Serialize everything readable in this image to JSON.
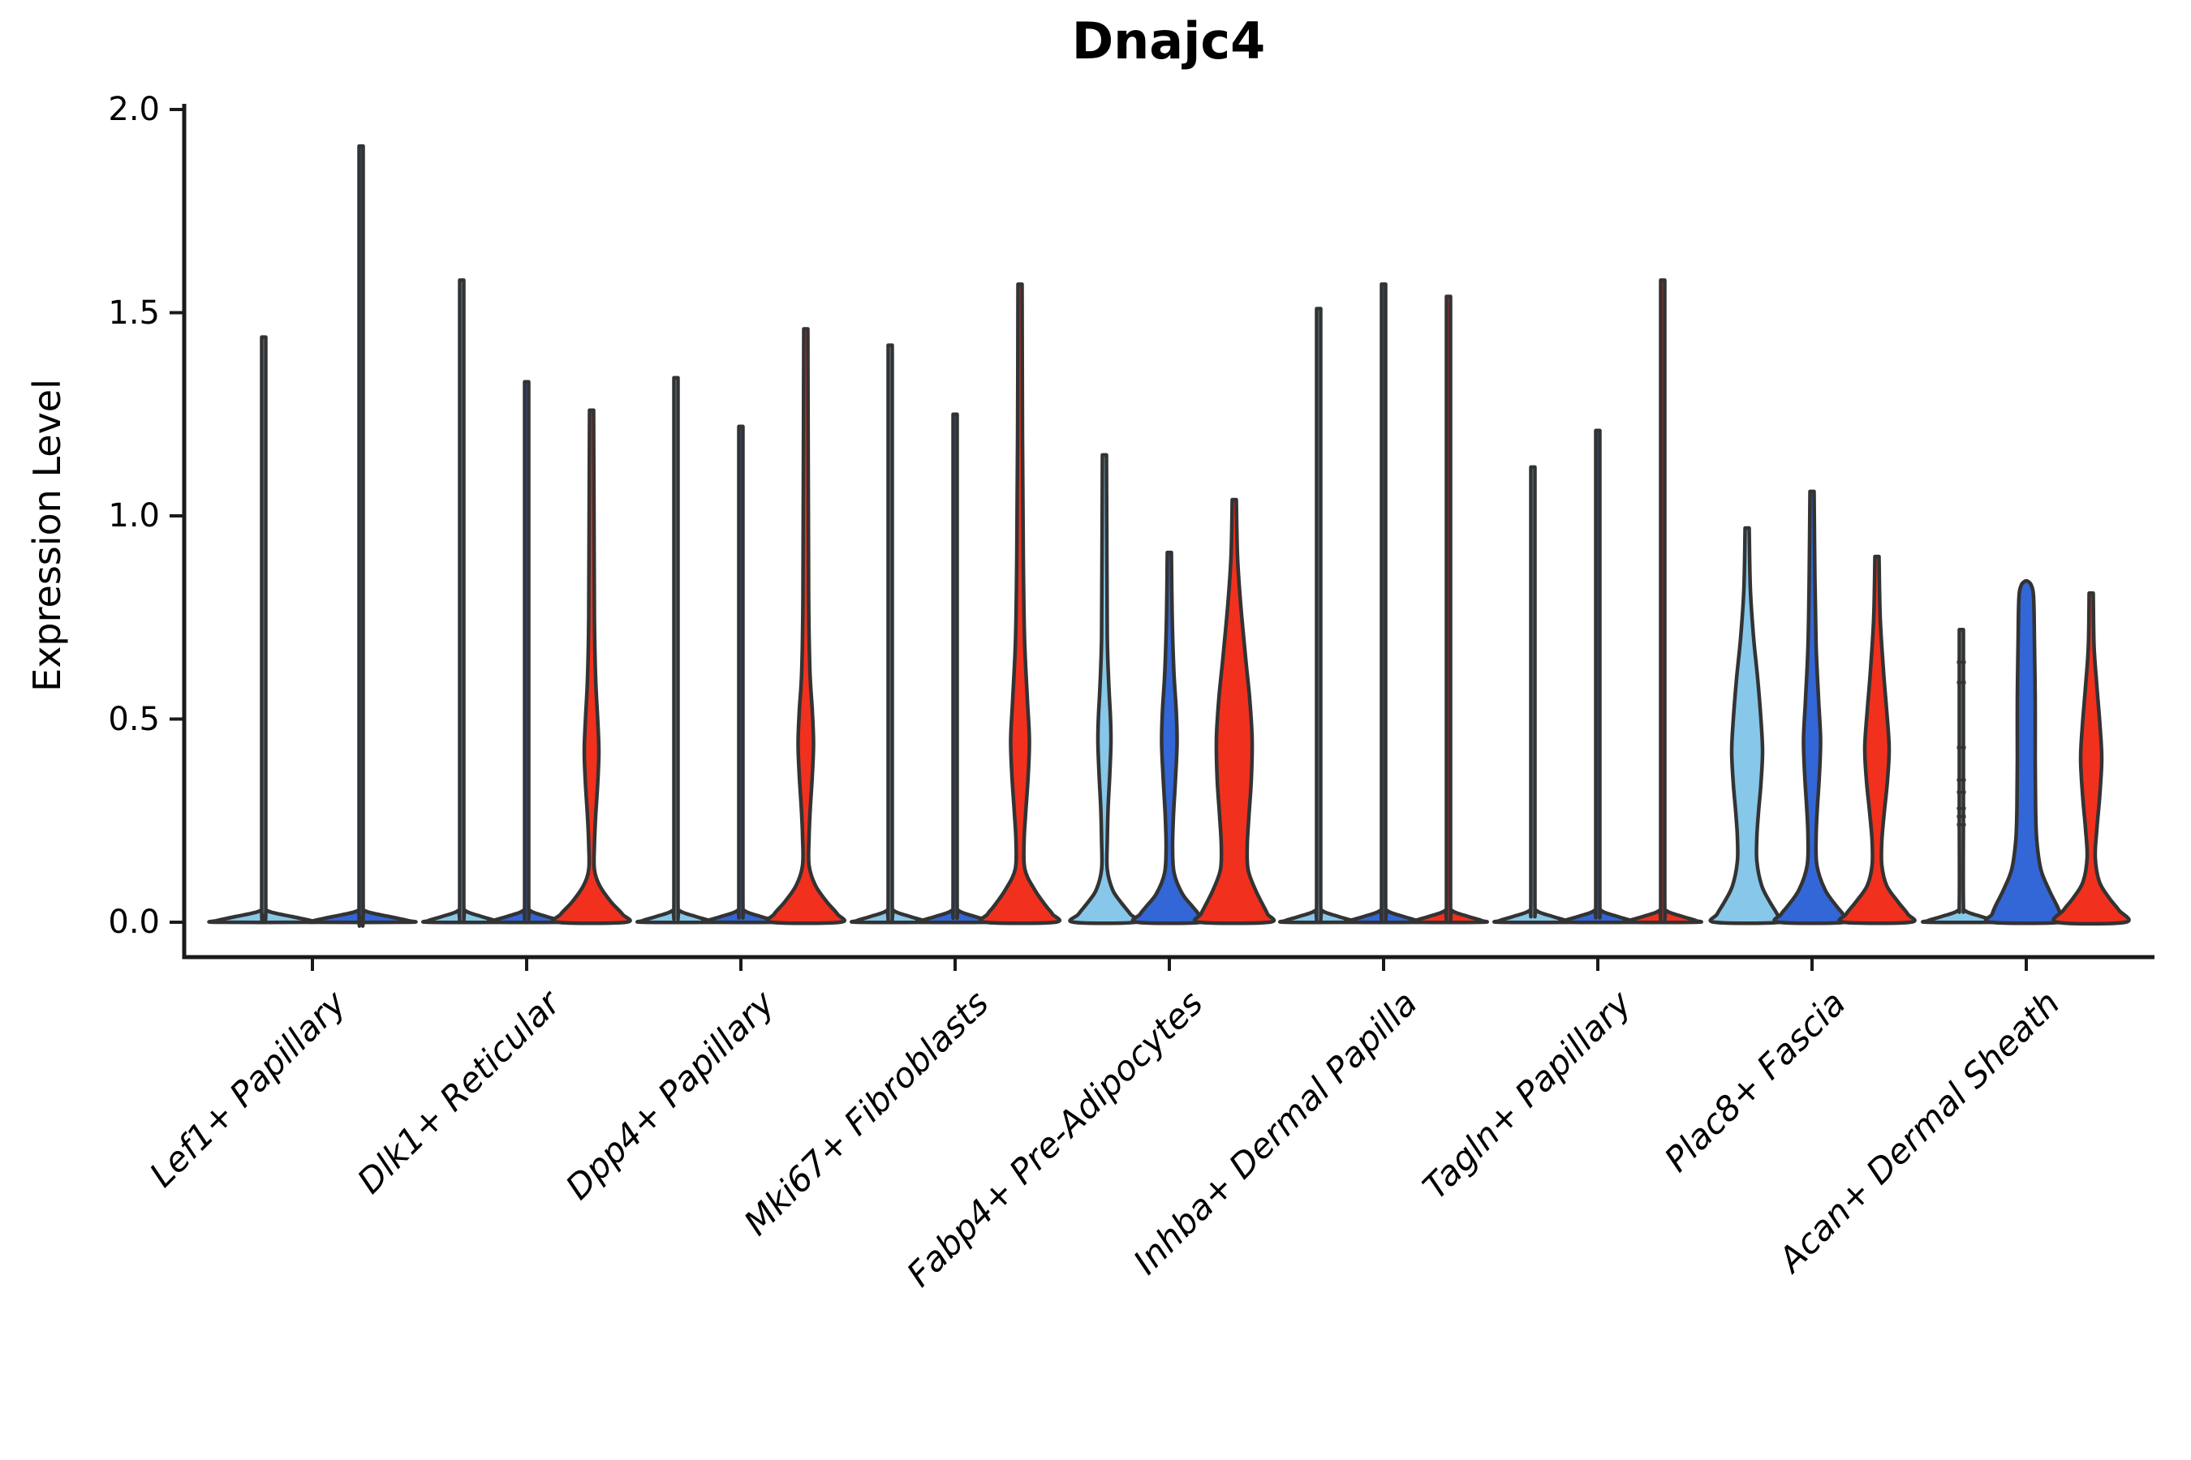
{
  "chart_data": {
    "type": "violin",
    "title": "Dnajc4",
    "xlabel": "",
    "ylabel": "Expression Level",
    "ylim": [
      0.0,
      2.0
    ],
    "yticks": [
      0.0,
      0.5,
      1.0,
      1.5,
      2.0
    ],
    "ytick_labels": [
      "0.0",
      "0.5",
      "1.0",
      "1.5",
      "2.0"
    ],
    "grid": false,
    "legend_position": "none",
    "colors": {
      "lightblue": "#87C7E9",
      "blue": "#3366D6",
      "red": "#F2301E",
      "outline": "#333333",
      "axis": "#1a1a1a"
    },
    "categories": [
      "Lef1+ Papillary",
      "Dlk1+ Reticular",
      "Dpp4+ Papillary",
      "Mki67+ Fibroblasts",
      "Fabp4+ Pre-Adipocytes",
      "Inhba+ Dermal Papilla",
      "Tagln+ Papillary",
      "Plac8+ Fascia",
      "Acan+ Dermal Sheath"
    ],
    "groups": [
      {
        "category": "Lef1+ Papillary",
        "violins": [
          {
            "color": "lightblue",
            "shape": "spike",
            "max": 1.44
          },
          {
            "color": "blue",
            "shape": "spike",
            "max": 1.91
          }
        ]
      },
      {
        "category": "Dlk1+ Reticular",
        "violins": [
          {
            "color": "lightblue",
            "shape": "spike",
            "max": 1.58
          },
          {
            "color": "blue",
            "shape": "spike",
            "max": 1.33
          },
          {
            "color": "red",
            "shape": "body",
            "max": 1.26,
            "profile": [
              [
                1.26,
                2.5
              ],
              [
                1.0,
                3
              ],
              [
                0.75,
                3.5
              ],
              [
                0.6,
                5
              ],
              [
                0.5,
                7.5
              ],
              [
                0.42,
                9
              ],
              [
                0.34,
                7.5
              ],
              [
                0.26,
                5
              ],
              [
                0.19,
                3.5
              ],
              [
                0.13,
                3.5
              ],
              [
                0.09,
                10
              ],
              [
                0.05,
                24
              ],
              [
                0.02,
                38
              ],
              [
                0,
                42
              ]
            ]
          }
        ]
      },
      {
        "category": "Dpp4+ Papillary",
        "violins": [
          {
            "color": "lightblue",
            "shape": "spike",
            "max": 1.34
          },
          {
            "color": "blue",
            "shape": "spike",
            "max": 1.22
          },
          {
            "color": "red",
            "shape": "body",
            "max": 1.46,
            "profile": [
              [
                1.46,
                2.5
              ],
              [
                1.1,
                3
              ],
              [
                0.8,
                3.5
              ],
              [
                0.62,
                5
              ],
              [
                0.52,
                8
              ],
              [
                0.44,
                9.5
              ],
              [
                0.36,
                8
              ],
              [
                0.28,
                5.5
              ],
              [
                0.21,
                4
              ],
              [
                0.14,
                4
              ],
              [
                0.09,
                12
              ],
              [
                0.05,
                26
              ],
              [
                0.02,
                39
              ],
              [
                0,
                42
              ]
            ]
          }
        ]
      },
      {
        "category": "Mki67+ Fibroblasts",
        "violins": [
          {
            "color": "lightblue",
            "shape": "spike",
            "max": 1.42
          },
          {
            "color": "blue",
            "shape": "spike",
            "max": 1.25
          },
          {
            "color": "red",
            "shape": "body",
            "max": 1.57,
            "profile": [
              [
                1.57,
                2.5
              ],
              [
                1.2,
                3
              ],
              [
                0.9,
                4
              ],
              [
                0.7,
                5.5
              ],
              [
                0.55,
                9
              ],
              [
                0.45,
                11.5
              ],
              [
                0.36,
                10
              ],
              [
                0.27,
                7
              ],
              [
                0.2,
                5
              ],
              [
                0.13,
                6
              ],
              [
                0.08,
                18
              ],
              [
                0.04,
                32
              ],
              [
                0.02,
                40
              ],
              [
                0,
                43
              ]
            ]
          }
        ]
      },
      {
        "category": "Fabp4+ Pre-Adipocytes",
        "violins": [
          {
            "color": "lightblue",
            "shape": "body",
            "max": 1.15,
            "profile": [
              [
                1.15,
                2.5
              ],
              [
                0.9,
                3
              ],
              [
                0.7,
                3.5
              ],
              [
                0.58,
                5.5
              ],
              [
                0.5,
                7.5
              ],
              [
                0.44,
                8
              ],
              [
                0.36,
                6.5
              ],
              [
                0.28,
                4.5
              ],
              [
                0.2,
                3.5
              ],
              [
                0.13,
                3.5
              ],
              [
                0.08,
                10
              ],
              [
                0.05,
                20
              ],
              [
                0.02,
                32
              ],
              [
                0,
                38
              ]
            ]
          },
          {
            "color": "blue",
            "shape": "body",
            "max": 0.91,
            "profile": [
              [
                0.91,
                2.5
              ],
              [
                0.75,
                3.5
              ],
              [
                0.62,
                5.5
              ],
              [
                0.52,
                8.5
              ],
              [
                0.44,
                9.5
              ],
              [
                0.35,
                7.5
              ],
              [
                0.26,
                5
              ],
              [
                0.18,
                4
              ],
              [
                0.12,
                6
              ],
              [
                0.07,
                16
              ],
              [
                0.04,
                28
              ],
              [
                0.02,
                36
              ],
              [
                0,
                40
              ]
            ]
          },
          {
            "color": "red",
            "shape": "body",
            "max": 1.04,
            "profile": [
              [
                1.04,
                2.5
              ],
              [
                0.9,
                4
              ],
              [
                0.78,
                8
              ],
              [
                0.65,
                14
              ],
              [
                0.55,
                19
              ],
              [
                0.45,
                22
              ],
              [
                0.35,
                21
              ],
              [
                0.26,
                18
              ],
              [
                0.19,
                16
              ],
              [
                0.13,
                17
              ],
              [
                0.08,
                26
              ],
              [
                0.04,
                36
              ],
              [
                0.02,
                41
              ],
              [
                0,
                43
              ]
            ]
          }
        ]
      },
      {
        "category": "Inhba+ Dermal Papilla",
        "violins": [
          {
            "color": "lightblue",
            "shape": "spike",
            "max": 1.51
          },
          {
            "color": "blue",
            "shape": "spike",
            "max": 1.57
          },
          {
            "color": "red",
            "shape": "spike",
            "max": 1.54
          }
        ]
      },
      {
        "category": "Tagln+ Papillary",
        "violins": [
          {
            "color": "lightblue",
            "shape": "spike",
            "max": 1.12
          },
          {
            "color": "blue",
            "shape": "spike",
            "max": 1.21
          },
          {
            "color": "red",
            "shape": "spike",
            "max": 1.58
          }
        ]
      },
      {
        "category": "Plac8+ Fascia",
        "violins": [
          {
            "color": "lightblue",
            "shape": "body",
            "max": 0.97,
            "profile": [
              [
                0.97,
                2.5
              ],
              [
                0.82,
                4
              ],
              [
                0.7,
                8
              ],
              [
                0.6,
                13
              ],
              [
                0.5,
                17
              ],
              [
                0.42,
                19
              ],
              [
                0.34,
                17
              ],
              [
                0.27,
                14
              ],
              [
                0.21,
                12
              ],
              [
                0.15,
                12
              ],
              [
                0.09,
                18
              ],
              [
                0.05,
                28
              ],
              [
                0.02,
                37
              ],
              [
                0,
                40
              ]
            ]
          },
          {
            "color": "blue",
            "shape": "body",
            "max": 1.06,
            "profile": [
              [
                1.06,
                2.5
              ],
              [
                0.85,
                3.5
              ],
              [
                0.68,
                5
              ],
              [
                0.55,
                8
              ],
              [
                0.45,
                10.5
              ],
              [
                0.36,
                9
              ],
              [
                0.28,
                6.5
              ],
              [
                0.21,
                5
              ],
              [
                0.14,
                6
              ],
              [
                0.08,
                16
              ],
              [
                0.04,
                30
              ],
              [
                0.02,
                38
              ],
              [
                0,
                41
              ]
            ]
          },
          {
            "color": "red",
            "shape": "body",
            "max": 0.9,
            "profile": [
              [
                0.9,
                2.5
              ],
              [
                0.75,
                4
              ],
              [
                0.62,
                8
              ],
              [
                0.52,
                12
              ],
              [
                0.43,
                15
              ],
              [
                0.35,
                13
              ],
              [
                0.27,
                9
              ],
              [
                0.2,
                6
              ],
              [
                0.14,
                6
              ],
              [
                0.09,
                12
              ],
              [
                0.05,
                26
              ],
              [
                0.02,
                38
              ],
              [
                0,
                41
              ]
            ]
          }
        ]
      },
      {
        "category": "Acan+ Dermal Sheath",
        "violins": [
          {
            "color": "lightblue",
            "shape": "spike",
            "max": 0.72,
            "dashes": [
              0.64,
              0.59,
              0.43,
              0.35,
              0.32,
              0.28,
              0.26,
              0.24
            ]
          },
          {
            "color": "blue",
            "shape": "body",
            "max": 0.84,
            "profile": [
              [
                0.84,
                1
              ],
              [
                0.83,
                6
              ],
              [
                0.8,
                9
              ],
              [
                0.7,
                10
              ],
              [
                0.55,
                11
              ],
              [
                0.4,
                11
              ],
              [
                0.28,
                11.5
              ],
              [
                0.2,
                13
              ],
              [
                0.13,
                18
              ],
              [
                0.08,
                28
              ],
              [
                0.04,
                38
              ],
              [
                0.02,
                42
              ],
              [
                0,
                44
              ]
            ]
          },
          {
            "color": "red",
            "shape": "body",
            "max": 0.81,
            "profile": [
              [
                0.81,
                2.5
              ],
              [
                0.68,
                3.5
              ],
              [
                0.58,
                7
              ],
              [
                0.48,
                11
              ],
              [
                0.4,
                13
              ],
              [
                0.31,
                10.5
              ],
              [
                0.23,
                7
              ],
              [
                0.16,
                5
              ],
              [
                0.1,
                10
              ],
              [
                0.06,
                22
              ],
              [
                0.03,
                34
              ],
              [
                0,
                42
              ]
            ]
          }
        ]
      }
    ]
  }
}
